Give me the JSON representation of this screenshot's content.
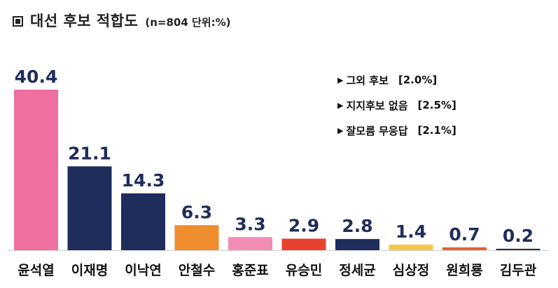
{
  "title_icon": "square-bullet-icon",
  "title": "대선 후보 적합도",
  "subtitle": "(n=804 단위:%)",
  "notes": [
    {
      "label": "그외 후보",
      "value": "[2.0%]"
    },
    {
      "label": "지지후보 없음",
      "value": "[2.5%]"
    },
    {
      "label": "잘모름 무응답",
      "value": "[2.1%]"
    }
  ],
  "chart_data": {
    "type": "bar",
    "categories": [
      "윤석열",
      "이재명",
      "이낙연",
      "안철수",
      "홍준표",
      "유승민",
      "정세균",
      "심상정",
      "원희룡",
      "김두관"
    ],
    "values": [
      40.4,
      21.1,
      14.3,
      6.3,
      3.3,
      2.9,
      2.8,
      1.4,
      0.7,
      0.2
    ],
    "value_labels": [
      "40.4",
      "21.1",
      "14.3",
      "6.3",
      "3.3",
      "2.9",
      "2.8",
      "1.4",
      "0.7",
      "0.2"
    ],
    "colors": [
      "#ee6fa0",
      "#1f2d5c",
      "#1f2d5c",
      "#ef8c2e",
      "#f28db5",
      "#e8412e",
      "#1f2d5c",
      "#f5c84a",
      "#e8602e",
      "#2b2b4a"
    ],
    "ylim": [
      0,
      40.4
    ],
    "grid": false,
    "legend": "none"
  }
}
